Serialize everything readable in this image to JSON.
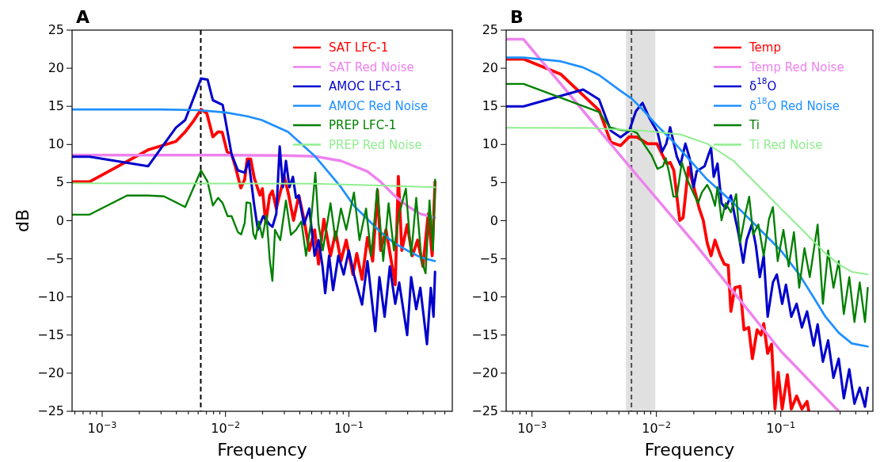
{
  "chart_data": [
    {
      "type": "line",
      "title": "A",
      "xlabel": "Frequency",
      "ylabel": "dB",
      "log": "x",
      "legend": "top right",
      "xlim": [
        0.00057,
        0.69
      ],
      "ylim": [
        -25,
        25
      ],
      "xticks": [
        {
          "value": 0.0006,
          "label": null
        },
        {
          "value": 0.0007,
          "label": null
        },
        {
          "value": 0.0008,
          "label": null
        },
        {
          "value": 0.0009,
          "label": null
        },
        {
          "value": 0.001,
          "label": "10$^{−3}$"
        },
        {
          "value": 0.002,
          "label": null
        },
        {
          "value": 0.003,
          "label": null
        },
        {
          "value": 0.004,
          "label": null
        },
        {
          "value": 0.005,
          "label": null
        },
        {
          "value": 0.006,
          "label": null
        },
        {
          "value": 0.007,
          "label": null
        },
        {
          "value": 0.008,
          "label": null
        },
        {
          "value": 0.009,
          "label": null
        },
        {
          "value": 0.01,
          "label": "10$^{−2}$"
        },
        {
          "value": 0.02,
          "label": null
        },
        {
          "value": 0.03,
          "label": null
        },
        {
          "value": 0.04,
          "label": null
        },
        {
          "value": 0.05,
          "label": null
        },
        {
          "value": 0.06,
          "label": null
        },
        {
          "value": 0.07,
          "label": null
        },
        {
          "value": 0.08,
          "label": null
        },
        {
          "value": 0.09,
          "label": null
        },
        {
          "value": 0.1,
          "label": "10$^{−1}$"
        },
        {
          "value": 0.2,
          "label": null
        },
        {
          "value": 0.3,
          "label": null
        },
        {
          "value": 0.4,
          "label": null
        },
        {
          "value": 0.5,
          "label": null
        },
        {
          "value": 0.6,
          "label": null
        }
      ],
      "yticks": [
        {
          "value": -25,
          "label": "−25"
        },
        {
          "value": -20,
          "label": "−20"
        },
        {
          "value": -15,
          "label": "−15"
        },
        {
          "value": -10,
          "label": "−10"
        },
        {
          "value": -5,
          "label": "−5"
        },
        0,
        5,
        10,
        15,
        20,
        25
      ],
      "ref_lines": [
        {
          "axis": "x",
          "value": 0.0063,
          "color": "#000000",
          "line_style": "dashed"
        }
      ],
      "series": [
        {
          "name": "SAT LFC-1",
          "color": "#ff0000",
          "x": [
            0.00057,
            0.00079,
            0.00236,
            0.00396,
            0.00471,
            0.00546,
            0.00633,
            0.00705,
            0.0079,
            0.0087,
            0.0094,
            0.0103,
            0.0112,
            0.012,
            0.0133,
            0.0143,
            0.015,
            0.016,
            0.0171,
            0.019,
            0.0199,
            0.0212,
            0.0228,
            0.024,
            0.0258,
            0.0299,
            0.0322,
            0.0356,
            0.0393,
            0.0433,
            0.0478,
            0.0528,
            0.0568,
            0.0627,
            0.071,
            0.0782,
            0.0863,
            0.0953,
            0.108,
            0.116,
            0.128,
            0.1416,
            0.156,
            0.1706,
            0.181,
            0.2,
            0.221,
            0.2377,
            0.252,
            0.269,
            0.297,
            0.327,
            0.361,
            0.399,
            0.44,
            0.474,
            0.5
          ],
          "values": [
            5.1,
            5.1,
            9.3,
            10.4,
            11.65,
            13.0,
            14.6,
            14.1,
            11.0,
            11.65,
            11.6,
            9.05,
            8.7,
            7.15,
            4.3,
            5.4,
            8.1,
            8.1,
            5.6,
            3.35,
            4.2,
            -0.3,
            3.3,
            3.9,
            1.6,
            5.8,
            3.7,
            0.05,
            3.3,
            0.2,
            -3.9,
            -1.2,
            -5.7,
            0.2,
            -4.6,
            -1.5,
            -5.3,
            -2.55,
            -7.05,
            -4.3,
            -7.7,
            -2.2,
            -5.3,
            4.0,
            -3.9,
            -1.2,
            -5.3,
            -8.4,
            5.8,
            -3.9,
            -0.5,
            -4.6,
            -2.55,
            -6.0,
            0.9,
            -4.6,
            5.1
          ]
        },
        {
          "name": "SAT Red Noise",
          "color": "#ee82ee",
          "x": [
            0.00057,
            0.01,
            0.03,
            0.0528,
            0.0863,
            0.1416,
            0.181,
            0.232,
            0.297,
            0.38,
            0.5
          ],
          "values": [
            8.6,
            8.6,
            8.55,
            8.45,
            7.85,
            6.45,
            5.1,
            3.35,
            1.95,
            0.9,
            0.4
          ]
        },
        {
          "name": "AMOC LFC-1",
          "color": "#0000cd",
          "x": [
            0.00057,
            0.00079,
            0.00236,
            0.00396,
            0.00471,
            0.00633,
            0.00716,
            0.0079,
            0.00948,
            0.0112,
            0.0126,
            0.0143,
            0.0154,
            0.017,
            0.0183,
            0.0202,
            0.0228,
            0.024,
            0.0258,
            0.0275,
            0.0292,
            0.0309,
            0.033,
            0.0352,
            0.0373,
            0.0393,
            0.0433,
            0.0478,
            0.0528,
            0.0568,
            0.0612,
            0.0643,
            0.0692,
            0.0745,
            0.0822,
            0.0908,
            0.1,
            0.11,
            0.128,
            0.1416,
            0.164,
            0.177,
            0.195,
            0.215,
            0.2377,
            0.256,
            0.297,
            0.32,
            0.352,
            0.38,
            0.43,
            0.462,
            0.486,
            0.5
          ],
          "values": [
            8.4,
            8.4,
            7.15,
            12.2,
            13.2,
            18.65,
            18.5,
            15.8,
            15.2,
            8.7,
            6.6,
            6.3,
            7.85,
            2.3,
            -1.2,
            0.6,
            -0.5,
            -0.8,
            0.9,
            9.75,
            4.4,
            7.85,
            4.4,
            5.75,
            3.0,
            3.3,
            -0.5,
            1.6,
            -4.6,
            -2.55,
            -6.0,
            -9.5,
            -4.6,
            -9.1,
            -4.6,
            -7.05,
            -3.9,
            -7.05,
            -11.0,
            -5.3,
            -14.5,
            -7.4,
            -12.6,
            -6.0,
            -10.9,
            -8.1,
            -15.0,
            -7.4,
            -11.6,
            -8.8,
            -16.2,
            -8.8,
            -12.6,
            -6.7
          ]
        },
        {
          "name": "AMOC Red Noise",
          "color": "#1e90ff",
          "x": [
            0.00057,
            0.001,
            0.003,
            0.006,
            0.01,
            0.015,
            0.0197,
            0.0322,
            0.0528,
            0.0676,
            0.0863,
            0.11,
            0.1416,
            0.181,
            0.232,
            0.297,
            0.38,
            0.5
          ],
          "values": [
            14.6,
            14.6,
            14.6,
            14.5,
            14.2,
            13.7,
            13.2,
            11.65,
            8.5,
            6.45,
            4.4,
            1.95,
            0.2,
            -1.5,
            -2.9,
            -3.9,
            -4.8,
            -5.3
          ]
        },
        {
          "name": "PREP LFC-1",
          "color": "#008000",
          "x": [
            0.00057,
            0.00079,
            0.00159,
            0.00236,
            0.00317,
            0.00471,
            0.00633,
            0.00716,
            0.0079,
            0.0087,
            0.00948,
            0.0104,
            0.0112,
            0.0126,
            0.0134,
            0.0143,
            0.0148,
            0.0159,
            0.0168,
            0.0175,
            0.0186,
            0.0199,
            0.0215,
            0.0228,
            0.024,
            0.0252,
            0.0278,
            0.0309,
            0.0339,
            0.0373,
            0.0412,
            0.045,
            0.049,
            0.0535,
            0.0568,
            0.0615,
            0.071,
            0.078,
            0.0863,
            0.0953,
            0.11,
            0.122,
            0.138,
            0.152,
            0.17,
            0.19,
            0.21,
            0.232,
            0.256,
            0.29,
            0.32,
            0.352,
            0.389,
            0.419,
            0.451,
            0.481,
            0.5
          ],
          "values": [
            0.8,
            0.8,
            3.3,
            3.3,
            3.2,
            1.8,
            6.6,
            5.1,
            2.0,
            3.0,
            2.3,
            0.6,
            0.6,
            -1.5,
            -1.8,
            -0.3,
            2.4,
            2.3,
            -1.7,
            -2.4,
            -0.1,
            -2.2,
            0.7,
            -5.0,
            -7.9,
            -1.2,
            -2.55,
            2.65,
            -1.85,
            -1.2,
            -0.1,
            -4.6,
            -0.5,
            6.3,
            -0.5,
            -3.9,
            2.3,
            -2.55,
            1.6,
            -1.2,
            3.7,
            -2.55,
            1.6,
            -4.6,
            4.2,
            -5.3,
            2.3,
            -3.9,
            0.9,
            4.2,
            -4.6,
            3.0,
            -5.3,
            -6.9,
            2.65,
            -3.9,
            5.4
          ]
        },
        {
          "name": "PREP Red Noise",
          "color": "#90ee90",
          "x": [
            0.00057,
            0.05,
            0.2,
            0.5
          ],
          "values": [
            4.9,
            4.85,
            4.6,
            4.4
          ]
        }
      ]
    },
    {
      "type": "line",
      "title": "B",
      "xlabel": "Frequency",
      "log": "x",
      "legend": "top right",
      "xlim": [
        0.00062,
        0.55
      ],
      "ylim": [
        -25,
        25
      ],
      "xticks": [
        {
          "value": 0.0007,
          "label": null
        },
        {
          "value": 0.0008,
          "label": null
        },
        {
          "value": 0.0009,
          "label": null
        },
        {
          "value": 0.001,
          "label": "10$^{−3}$"
        },
        {
          "value": 0.002,
          "label": null
        },
        {
          "value": 0.003,
          "label": null
        },
        {
          "value": 0.004,
          "label": null
        },
        {
          "value": 0.005,
          "label": null
        },
        {
          "value": 0.006,
          "label": null
        },
        {
          "value": 0.007,
          "label": null
        },
        {
          "value": 0.008,
          "label": null
        },
        {
          "value": 0.009,
          "label": null
        },
        {
          "value": 0.01,
          "label": "10$^{−2}$"
        },
        {
          "value": 0.02,
          "label": null
        },
        {
          "value": 0.03,
          "label": null
        },
        {
          "value": 0.04,
          "label": null
        },
        {
          "value": 0.05,
          "label": null
        },
        {
          "value": 0.06,
          "label": null
        },
        {
          "value": 0.07,
          "label": null
        },
        {
          "value": 0.08,
          "label": null
        },
        {
          "value": 0.09,
          "label": null
        },
        {
          "value": 0.1,
          "label": "10$^{−1}$"
        },
        {
          "value": 0.2,
          "label": null
        },
        {
          "value": 0.3,
          "label": null
        },
        {
          "value": 0.4,
          "label": null
        },
        {
          "value": 0.5,
          "label": null
        }
      ],
      "yticks": [
        {
          "value": -25,
          "label": "−25"
        },
        {
          "value": -20,
          "label": "−20"
        },
        {
          "value": -15,
          "label": "−15"
        },
        {
          "value": -10,
          "label": "−10"
        },
        {
          "value": -5,
          "label": "−5"
        },
        0,
        5,
        10,
        15,
        20,
        25
      ],
      "bands": [
        {
          "axis": "x",
          "from": 0.0057,
          "to": 0.0098,
          "color": "#e0e0e0"
        }
      ],
      "ref_lines": [
        {
          "axis": "x",
          "value": 0.0063,
          "color": "#505050",
          "line_style": "dashed"
        }
      ],
      "series": [
        {
          "name": "Temp",
          "color": "#ff0000",
          "x": [
            0.00062,
            0.000856,
            0.00171,
            0.00346,
            0.0043,
            0.00515,
            0.00605,
            0.007,
            0.0085,
            0.0101,
            0.0121,
            0.0129,
            0.0138,
            0.0154,
            0.0164,
            0.0181,
            0.02,
            0.0221,
            0.0238,
            0.0256,
            0.0275,
            0.0296,
            0.0327,
            0.0352,
            0.0378,
            0.0397,
            0.0427,
            0.047,
            0.0506,
            0.0552,
            0.0591,
            0.0645,
            0.0694,
            0.0729,
            0.0784,
            0.0843,
            0.0898,
            0.0953,
            0.1026,
            0.113,
            0.1215,
            0.134,
            0.1477,
            0.1626,
            0.168
          ],
          "values": [
            21.2,
            21.2,
            19.2,
            14.5,
            10.3,
            9.85,
            11.0,
            10.95,
            10.1,
            10.1,
            7.5,
            7.65,
            6.6,
            0.05,
            0.4,
            7.0,
            4.4,
            1.6,
            0.05,
            -2.9,
            -4.6,
            -2.55,
            -4.6,
            -5.7,
            -5.85,
            -11.9,
            -8.8,
            -8.6,
            -14.3,
            -14.0,
            -18.1,
            -14.3,
            -15.0,
            -13.5,
            -17.4,
            -16.2,
            -24.7,
            -19.9,
            -24.7,
            -20.2,
            -24.7,
            -23.0,
            -24.7,
            -23.7,
            -25
          ]
        },
        {
          "name": "Temp Red Noise",
          "color": "#ee82ee",
          "x": [
            0.00062,
            0.000856,
            0.00605,
            0.0205,
            0.1,
            0.292
          ],
          "values": [
            23.8,
            23.8,
            7.15,
            -3.05,
            -17.1,
            -25
          ]
        },
        {
          "name": "δ$^{18}$O",
          "color": "#0000cd",
          "x": [
            0.00062,
            0.000856,
            0.00258,
            0.00346,
            0.0043,
            0.00515,
            0.00605,
            0.00684,
            0.00773,
            0.00873,
            0.0102,
            0.0111,
            0.012,
            0.0129,
            0.0146,
            0.0156,
            0.0171,
            0.0185,
            0.0199,
            0.0211,
            0.0244,
            0.0263,
            0.0275,
            0.0289,
            0.031,
            0.0334,
            0.036,
            0.0397,
            0.0427,
            0.0459,
            0.0499,
            0.0531,
            0.0585,
            0.063,
            0.0678,
            0.0729,
            0.0784,
            0.0864,
            0.0929,
            0.1026,
            0.11,
            0.1215,
            0.134,
            0.1477,
            0.1626,
            0.1837,
            0.1977,
            0.218,
            0.24,
            0.265,
            0.292,
            0.321,
            0.355,
            0.391,
            0.431,
            0.475,
            0.5
          ],
          "values": [
            15.0,
            15.0,
            17.2,
            15.9,
            11.8,
            10.95,
            11.8,
            14.35,
            15.45,
            13.55,
            11.65,
            9.05,
            10.1,
            12.25,
            8.4,
            7.3,
            10.1,
            8.2,
            4.4,
            6.5,
            7.15,
            8.7,
            9.55,
            5.75,
            7.5,
            2.3,
            1.6,
            3.3,
            0.57,
            -1.85,
            -5.5,
            -2.55,
            -0.5,
            -3.25,
            -7.4,
            -4.6,
            -12.6,
            -8.1,
            -7.05,
            -10.9,
            -8.4,
            -12.6,
            -10.9,
            -14.0,
            -11.9,
            -16.4,
            -13.6,
            -18.5,
            -15.7,
            -20.6,
            -18.1,
            -23.3,
            -19.5,
            -24.0,
            -21.9,
            -24.4,
            -21.9
          ]
        },
        {
          "name": "δ$^{18}$O Red Noise",
          "color": "#1e90ff",
          "x": [
            0.00062,
            0.000856,
            0.00171,
            0.00258,
            0.00346,
            0.00499,
            0.00635,
            0.00773,
            0.0101,
            0.0138,
            0.0205,
            0.0256,
            0.0417,
            0.0678,
            0.1,
            0.1406,
            0.1795,
            0.2286,
            0.292,
            0.372,
            0.5
          ],
          "values": [
            21.4,
            21.4,
            20.9,
            20.1,
            19.1,
            17.2,
            16.0,
            14.6,
            12.5,
            10.3,
            7.15,
            5.4,
            2.3,
            -1.15,
            -3.9,
            -7.05,
            -9.8,
            -12.6,
            -14.7,
            -16.1,
            -16.5
          ]
        },
        {
          "name": "Ti",
          "color": "#008000",
          "x": [
            0.00062,
            0.000856,
            0.00346,
            0.0042,
            0.00515,
            0.00635,
            0.007,
            0.0079,
            0.00916,
            0.0102,
            0.0113,
            0.0119,
            0.0126,
            0.0137,
            0.0146,
            0.016,
            0.0177,
            0.0191,
            0.0216,
            0.0232,
            0.0256,
            0.0275,
            0.0296,
            0.031,
            0.0334,
            0.036,
            0.0397,
            0.0438,
            0.047,
            0.0519,
            0.0557,
            0.06,
            0.066,
            0.0729,
            0.0803,
            0.0864,
            0.0944,
            0.105,
            0.1157,
            0.1275,
            0.1406,
            0.155,
            0.171,
            0.1977,
            0.218,
            0.24,
            0.265,
            0.292,
            0.321,
            0.355,
            0.391,
            0.431,
            0.475,
            0.5
          ],
          "values": [
            17.95,
            17.95,
            14.25,
            12.25,
            11.9,
            11.8,
            11.5,
            10.1,
            8.55,
            6.8,
            7.15,
            8.2,
            6.45,
            3.16,
            3.16,
            7.65,
            5.4,
            4.2,
            2.3,
            3.7,
            4.7,
            3.7,
            1.95,
            4.4,
            0.05,
            2.3,
            1.1,
            3.5,
            -2.9,
            0.9,
            3.16,
            -1.85,
            -0.5,
            -4.6,
            0.2,
            1.78,
            -5.3,
            -1.2,
            -6.0,
            -1.5,
            -8.8,
            -3.6,
            -7.4,
            -0.5,
            -10.9,
            -3.9,
            -8.8,
            -5.3,
            -12.25,
            -7.4,
            -13.3,
            -8.1,
            -13.3,
            -8.8
          ]
        },
        {
          "name": "Ti Red Noise",
          "color": "#90ee90",
          "x": [
            0.00062,
            0.003,
            0.008,
            0.0157,
            0.0256,
            0.0417,
            0.0678,
            0.1,
            0.1406,
            0.1795,
            0.2286,
            0.292,
            0.372,
            0.5
          ],
          "values": [
            12.2,
            12.15,
            11.8,
            11.3,
            10.1,
            7.85,
            4.4,
            1.6,
            -0.8,
            -2.55,
            -4.3,
            -5.7,
            -6.7,
            -7.05
          ]
        }
      ]
    }
  ]
}
